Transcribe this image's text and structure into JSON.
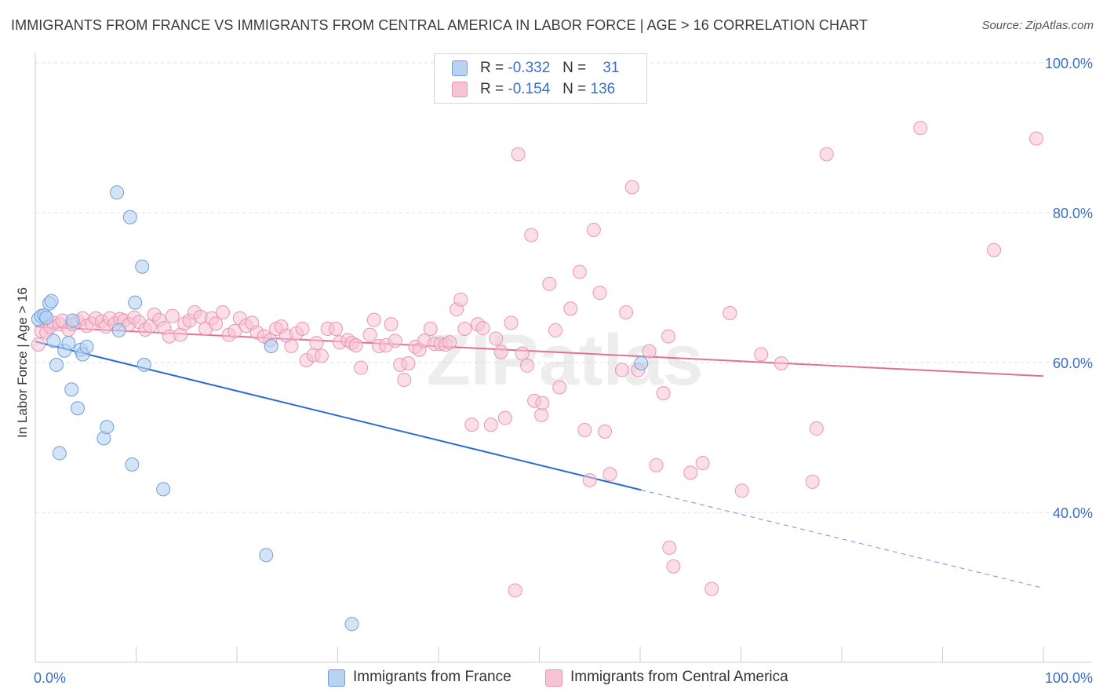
{
  "title": "IMMIGRANTS FROM FRANCE VS IMMIGRANTS FROM CENTRAL AMERICA IN LABOR FORCE | AGE > 16 CORRELATION CHART",
  "source": "Source: ZipAtlas.com",
  "watermark": "ZIPatlas",
  "legend": {
    "france": {
      "r_label": "R =",
      "r_value": "-0.332",
      "n_label": "N =",
      "n_value": "31"
    },
    "central": {
      "r_label": "R =",
      "r_value": "-0.154",
      "n_label": "N =",
      "n_value": "136"
    }
  },
  "bottom_legend": {
    "france": "Immigrants from France",
    "central": "Immigrants from Central America"
  },
  "colors": {
    "france_fill": "#b8d2f2",
    "france_stroke": "#6f9fdb",
    "france_line": "#2a6dd0",
    "central_fill": "#f7c3d3",
    "central_stroke": "#e996b2",
    "central_line": "#e0709a",
    "axis_text": "#3b6fc7",
    "grid": "#dddddd"
  },
  "chart_data": {
    "type": "scatter",
    "title": "IMMIGRANTS FROM FRANCE VS IMMIGRANTS FROM CENTRAL AMERICA IN LABOR FORCE | AGE > 16 CORRELATION CHART",
    "xlabel": "",
    "ylabel": "In Labor Force | Age > 16",
    "xlim": [
      0,
      100
    ],
    "ylim": [
      20,
      100
    ],
    "x_tick_labels": [
      "0.0%",
      "100.0%"
    ],
    "y_tick_labels": [
      "40.0%",
      "60.0%",
      "80.0%",
      "100.0%"
    ],
    "y_ticks": [
      40,
      60,
      80,
      100
    ],
    "grid": true,
    "legend_position": "top-center",
    "series": [
      {
        "name": "Immigrants from France",
        "points": [
          [
            0.3,
            65.8
          ],
          [
            0.6,
            66.2
          ],
          [
            0.9,
            66.3
          ],
          [
            1.1,
            66.0
          ],
          [
            1.4,
            67.9
          ],
          [
            1.6,
            68.2
          ],
          [
            1.8,
            62.9
          ],
          [
            2.1,
            59.7
          ],
          [
            2.4,
            47.9
          ],
          [
            2.9,
            61.6
          ],
          [
            3.3,
            62.6
          ],
          [
            3.6,
            56.4
          ],
          [
            3.7,
            65.6
          ],
          [
            4.2,
            53.9
          ],
          [
            4.5,
            61.7
          ],
          [
            4.7,
            61.1
          ],
          [
            5.1,
            62.1
          ],
          [
            6.8,
            49.9
          ],
          [
            7.1,
            51.4
          ],
          [
            8.1,
            82.7
          ],
          [
            8.3,
            64.3
          ],
          [
            9.4,
            79.4
          ],
          [
            9.6,
            46.4
          ],
          [
            9.9,
            68.0
          ],
          [
            10.6,
            72.8
          ],
          [
            10.8,
            59.7
          ],
          [
            12.7,
            43.1
          ],
          [
            22.9,
            34.3
          ],
          [
            23.4,
            62.2
          ],
          [
            31.4,
            25.1
          ],
          [
            60.1,
            59.9
          ]
        ],
        "trend": {
          "x": [
            0,
            60.1
          ],
          "y": [
            62.8,
            43.0
          ]
        },
        "trend_dashed": {
          "x": [
            60.1,
            100
          ],
          "y": [
            43.0,
            29.9
          ]
        }
      },
      {
        "name": "Immigrants from Central America",
        "points": [
          [
            0.3,
            62.4
          ],
          [
            0.6,
            64.2
          ],
          [
            1.1,
            64.0
          ],
          [
            1.5,
            64.8
          ],
          [
            1.8,
            65.3
          ],
          [
            2.4,
            65.1
          ],
          [
            2.7,
            65.6
          ],
          [
            3.3,
            64.4
          ],
          [
            3.7,
            65.1
          ],
          [
            4.2,
            65.5
          ],
          [
            4.7,
            65.9
          ],
          [
            5.1,
            64.9
          ],
          [
            5.6,
            65.2
          ],
          [
            6.0,
            65.9
          ],
          [
            6.6,
            65.5
          ],
          [
            7.0,
            64.8
          ],
          [
            7.4,
            65.9
          ],
          [
            7.9,
            65.2
          ],
          [
            8.4,
            65.8
          ],
          [
            8.8,
            65.6
          ],
          [
            9.3,
            65.1
          ],
          [
            9.8,
            66.0
          ],
          [
            10.3,
            65.4
          ],
          [
            10.9,
            64.4
          ],
          [
            11.4,
            64.9
          ],
          [
            11.8,
            66.4
          ],
          [
            12.3,
            65.7
          ],
          [
            12.8,
            64.6
          ],
          [
            13.3,
            63.5
          ],
          [
            13.6,
            66.2
          ],
          [
            14.4,
            63.7
          ],
          [
            14.8,
            65.2
          ],
          [
            15.3,
            65.6
          ],
          [
            15.8,
            66.7
          ],
          [
            16.4,
            66.1
          ],
          [
            16.9,
            64.5
          ],
          [
            17.5,
            65.9
          ],
          [
            17.9,
            65.2
          ],
          [
            18.6,
            66.7
          ],
          [
            19.2,
            63.7
          ],
          [
            19.8,
            64.2
          ],
          [
            20.3,
            65.9
          ],
          [
            20.9,
            64.9
          ],
          [
            21.5,
            65.3
          ],
          [
            22.0,
            64.0
          ],
          [
            22.7,
            63.5
          ],
          [
            23.3,
            63.0
          ],
          [
            23.9,
            64.5
          ],
          [
            24.4,
            64.8
          ],
          [
            24.9,
            63.6
          ],
          [
            25.4,
            62.2
          ],
          [
            25.9,
            63.9
          ],
          [
            26.5,
            64.5
          ],
          [
            26.9,
            60.3
          ],
          [
            27.6,
            61.0
          ],
          [
            27.9,
            62.6
          ],
          [
            28.4,
            60.9
          ],
          [
            29.0,
            64.5
          ],
          [
            29.8,
            64.5
          ],
          [
            30.2,
            62.7
          ],
          [
            31.0,
            63.0
          ],
          [
            31.4,
            62.6
          ],
          [
            31.8,
            62.3
          ],
          [
            32.3,
            59.3
          ],
          [
            33.2,
            63.7
          ],
          [
            33.6,
            65.7
          ],
          [
            34.1,
            62.2
          ],
          [
            34.8,
            62.3
          ],
          [
            35.3,
            65.1
          ],
          [
            35.7,
            62.9
          ],
          [
            36.2,
            59.7
          ],
          [
            36.6,
            57.7
          ],
          [
            37.0,
            59.9
          ],
          [
            37.7,
            62.1
          ],
          [
            38.1,
            61.7
          ],
          [
            38.6,
            62.9
          ],
          [
            39.2,
            64.5
          ],
          [
            39.6,
            62.5
          ],
          [
            40.2,
            62.5
          ],
          [
            40.7,
            62.4
          ],
          [
            41.1,
            62.7
          ],
          [
            41.8,
            67.1
          ],
          [
            42.2,
            68.4
          ],
          [
            42.6,
            64.5
          ],
          [
            43.3,
            51.7
          ],
          [
            43.9,
            65.1
          ],
          [
            44.4,
            64.6
          ],
          [
            45.2,
            51.7
          ],
          [
            45.7,
            63.2
          ],
          [
            46.2,
            61.4
          ],
          [
            46.6,
            52.6
          ],
          [
            47.2,
            65.3
          ],
          [
            47.6,
            29.6
          ],
          [
            47.9,
            87.8
          ],
          [
            48.3,
            61.2
          ],
          [
            48.8,
            59.6
          ],
          [
            49.2,
            77.0
          ],
          [
            49.5,
            54.9
          ],
          [
            50.2,
            53.0
          ],
          [
            50.3,
            54.6
          ],
          [
            51.0,
            70.5
          ],
          [
            51.6,
            64.3
          ],
          [
            52.0,
            56.7
          ],
          [
            53.1,
            67.2
          ],
          [
            54.0,
            72.1
          ],
          [
            54.5,
            51.0
          ],
          [
            55.0,
            44.3
          ],
          [
            55.4,
            77.7
          ],
          [
            56.0,
            69.3
          ],
          [
            56.5,
            50.8
          ],
          [
            57.0,
            45.1
          ],
          [
            58.2,
            59.0
          ],
          [
            58.6,
            66.7
          ],
          [
            59.2,
            83.4
          ],
          [
            59.8,
            59.0
          ],
          [
            60.9,
            61.5
          ],
          [
            61.6,
            46.3
          ],
          [
            62.3,
            55.9
          ],
          [
            62.8,
            63.5
          ],
          [
            62.9,
            35.3
          ],
          [
            63.3,
            32.8
          ],
          [
            65.0,
            45.3
          ],
          [
            66.2,
            46.6
          ],
          [
            67.1,
            29.8
          ],
          [
            68.9,
            66.6
          ],
          [
            70.1,
            42.9
          ],
          [
            72.0,
            61.1
          ],
          [
            74.0,
            59.9
          ],
          [
            77.1,
            44.1
          ],
          [
            77.5,
            51.2
          ],
          [
            78.5,
            87.8
          ],
          [
            87.8,
            91.3
          ],
          [
            95.1,
            75.0
          ],
          [
            99.3,
            89.9
          ]
        ],
        "trend": {
          "x": [
            0,
            100
          ],
          "y": [
            64.8,
            58.2
          ]
        }
      }
    ]
  }
}
